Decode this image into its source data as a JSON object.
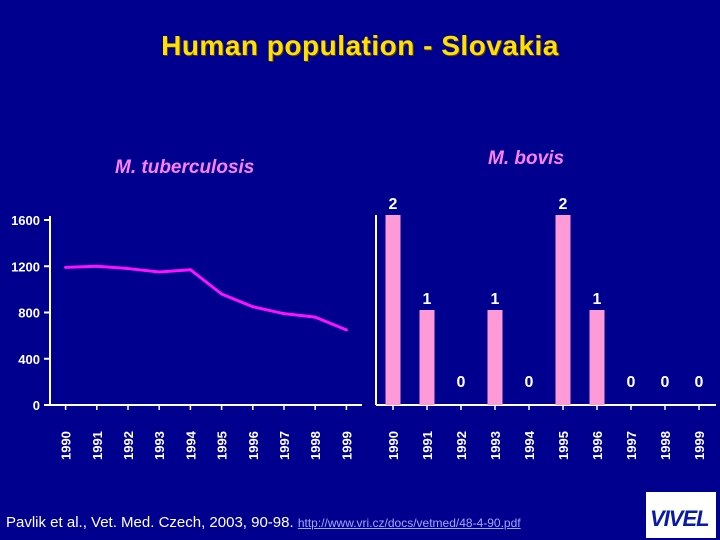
{
  "title": "Human population - Slovakia",
  "footer": {
    "citation": "Pavlik et al., Vet. Med. Czech, 2003, 90-98.",
    "link": "http://www.vri.cz/docs/vetmed/48-4-90.pdf"
  },
  "logo": {
    "text": "VIVEL"
  },
  "colors": {
    "background": "#00008f",
    "title": "#ffe000",
    "panel_title": "#ff80ff",
    "line": "#ff10ff",
    "bar": "#ff9ad8",
    "text": "#ffffff"
  },
  "chart_data": [
    {
      "type": "line",
      "title": "M. tuberculosis",
      "x": [
        "1990",
        "1991",
        "1992",
        "1993",
        "1994",
        "1995",
        "1996",
        "1997",
        "1998",
        "1999"
      ],
      "series": [
        {
          "values": [
            1190,
            1200,
            1180,
            1150,
            1170,
            960,
            850,
            790,
            760,
            650
          ]
        }
      ],
      "yticks": [
        "0",
        "400",
        "800",
        "1200",
        "1600"
      ],
      "ylim": [
        0,
        1600
      ],
      "grid": false
    },
    {
      "type": "bar",
      "title": "M. bovis",
      "categories": [
        "1990",
        "1991",
        "1992",
        "1993",
        "1994",
        "1995",
        "1996",
        "1997",
        "1998",
        "1999"
      ],
      "values": [
        2,
        1,
        0,
        1,
        0,
        2,
        1,
        0,
        0,
        0
      ],
      "data_labels": [
        "2",
        "1",
        "0",
        "1",
        "0",
        "2",
        "1",
        "0",
        "0",
        "0"
      ],
      "ylim": [
        0,
        2
      ],
      "grid": false
    }
  ]
}
